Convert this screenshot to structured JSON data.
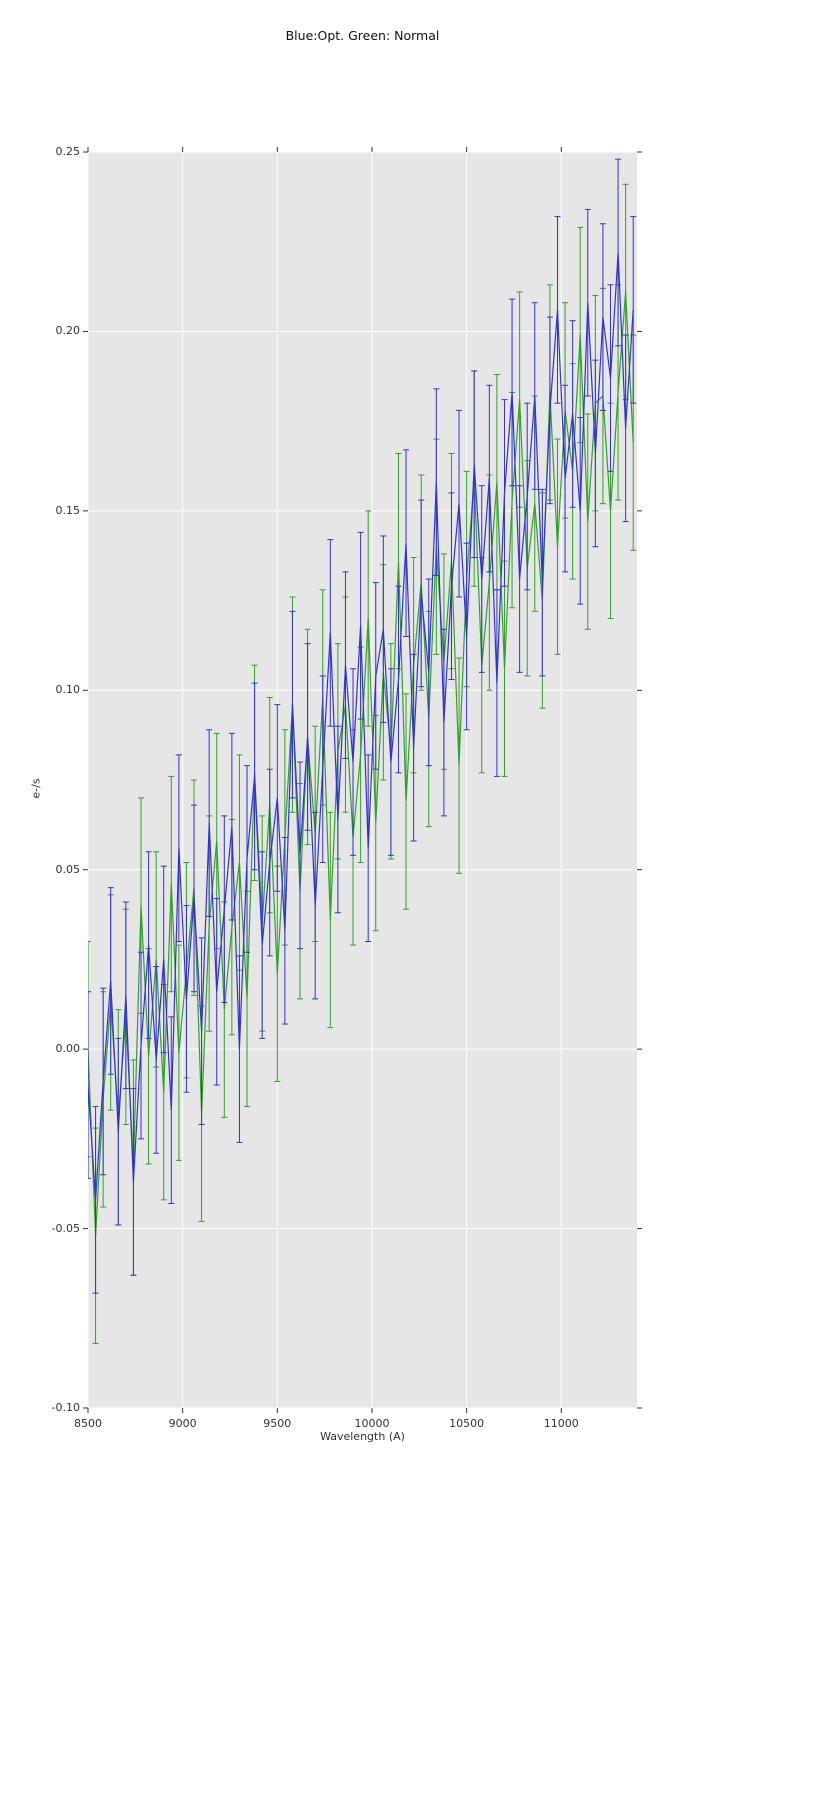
{
  "figure": {
    "title": "Blue:Opt. Green: Normal",
    "xlabel": "Wavelength (A)",
    "ylabel": "e-/s",
    "bg_color": "#ffffff",
    "plot_bg_color": "#e6e6e6",
    "grid_color": "#ffffff",
    "tick_color": "#333333"
  },
  "chart_data": {
    "type": "line",
    "title": "Blue:Opt. Green: Normal",
    "xlabel": "Wavelength (A)",
    "ylabel": "e-/s",
    "xlim": [
      8500,
      11400
    ],
    "ylim": [
      -0.1,
      0.25
    ],
    "grid": true,
    "legend_position": "none",
    "x_ticks": [
      8500,
      9000,
      9500,
      10000,
      10500,
      11000
    ],
    "x_tick_labels": [
      "8500",
      "9000",
      "9500",
      "10000",
      "10500",
      "11000"
    ],
    "y_ticks": [
      0.25,
      0.2,
      0.15,
      0.1,
      0.05,
      0.0,
      -0.05,
      -0.1
    ],
    "y_tick_labels": [
      "0.25",
      "0.20",
      "0.15",
      "0.10",
      "0.05",
      "0.00",
      "-0.05",
      "-0.10"
    ],
    "x": [
      8500,
      8540,
      8580,
      8620,
      8660,
      8700,
      8740,
      8780,
      8820,
      8860,
      8900,
      8940,
      8980,
      9020,
      9060,
      9100,
      9140,
      9180,
      9220,
      9260,
      9300,
      9340,
      9380,
      9420,
      9460,
      9500,
      9540,
      9580,
      9620,
      9660,
      9700,
      9740,
      9780,
      9820,
      9860,
      9900,
      9940,
      9980,
      10020,
      10060,
      10100,
      10140,
      10180,
      10220,
      10260,
      10300,
      10340,
      10380,
      10420,
      10460,
      10500,
      10540,
      10580,
      10620,
      10660,
      10700,
      10740,
      10780,
      10820,
      10860,
      10900,
      10940,
      10980,
      11020,
      11060,
      11100,
      11140,
      11180,
      11220,
      11260,
      11300,
      11340,
      11380
    ],
    "series": [
      {
        "name": "Normal",
        "color": "#33a02c",
        "error_half": 0.03,
        "values": [
          0.0,
          -0.052,
          -0.014,
          0.013,
          -0.019,
          0.009,
          -0.033,
          0.04,
          -0.002,
          0.025,
          -0.012,
          0.046,
          -0.001,
          0.022,
          0.045,
          -0.018,
          0.035,
          0.058,
          0.011,
          0.034,
          0.052,
          0.014,
          0.077,
          0.035,
          0.068,
          0.021,
          0.059,
          0.096,
          0.044,
          0.087,
          0.06,
          0.098,
          0.036,
          0.083,
          0.096,
          0.059,
          0.082,
          0.12,
          0.063,
          0.105,
          0.083,
          0.136,
          0.069,
          0.107,
          0.13,
          0.092,
          0.14,
          0.108,
          0.136,
          0.079,
          0.131,
          0.159,
          0.107,
          0.13,
          0.158,
          0.106,
          0.153,
          0.181,
          0.134,
          0.152,
          0.125,
          0.183,
          0.14,
          0.178,
          0.161,
          0.199,
          0.147,
          0.18,
          0.182,
          0.15,
          0.183,
          0.211,
          0.169
        ]
      },
      {
        "name": "Opt",
        "color": "#3333cc",
        "error_half": 0.026,
        "values": [
          -0.01,
          -0.042,
          -0.009,
          0.019,
          -0.023,
          0.015,
          -0.037,
          0.001,
          0.029,
          -0.003,
          0.025,
          -0.017,
          0.056,
          0.014,
          0.042,
          0.005,
          0.063,
          0.016,
          0.039,
          0.062,
          0.0,
          0.053,
          0.076,
          0.029,
          0.052,
          0.07,
          0.033,
          0.096,
          0.054,
          0.087,
          0.04,
          0.078,
          0.116,
          0.064,
          0.107,
          0.08,
          0.118,
          0.056,
          0.104,
          0.117,
          0.08,
          0.103,
          0.141,
          0.084,
          0.127,
          0.105,
          0.158,
          0.091,
          0.129,
          0.152,
          0.115,
          0.163,
          0.131,
          0.159,
          0.102,
          0.155,
          0.183,
          0.131,
          0.154,
          0.182,
          0.13,
          0.178,
          0.206,
          0.159,
          0.177,
          0.15,
          0.208,
          0.166,
          0.204,
          0.187,
          0.222,
          0.173,
          0.206
        ]
      }
    ]
  }
}
